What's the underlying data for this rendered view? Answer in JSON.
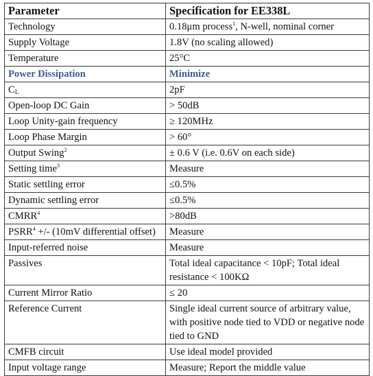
{
  "headers": {
    "col1": "Parameter",
    "col2": "Specification for EE338L"
  },
  "colors": {
    "highlight_text": "#3d5a91",
    "border": "#3a3a3a",
    "text": "#111111"
  },
  "rows": [
    {
      "param": "Technology",
      "spec_pre": "0.18",
      "spec_unit": "μm process",
      "spec_sup": "1",
      "spec_post": ", N-well, nominal corner"
    },
    {
      "param": "Supply Voltage",
      "spec": "1.8V (no scaling allowed)"
    },
    {
      "param": "Temperature",
      "spec": "25°C"
    },
    {
      "param": "Power Dissipation",
      "spec": "Minimize",
      "highlight": true
    },
    {
      "param_main": "C",
      "param_sub": "L",
      "spec": "2pF"
    },
    {
      "param": "Open-loop DC Gain",
      "spec": "> 50dB"
    },
    {
      "param": "Loop Unity-gain frequency",
      "spec": "≥ 120MHz"
    },
    {
      "param": "Loop Phase Margin",
      "spec": "> 60°"
    },
    {
      "param": "Output Swing",
      "param_sup": "2",
      "spec": "± 0.6 V (i.e. 0.6V on each side)"
    },
    {
      "param": "Setting time",
      "param_sup": "3",
      "spec": "Measure"
    },
    {
      "param": "Static settling error",
      "spec": "≤0.5%"
    },
    {
      "param": "Dynamic settling error",
      "spec": "≤0.5%"
    },
    {
      "param": "CMRR",
      "param_sup": "4",
      "spec": ">80dB"
    },
    {
      "param": "PSRR",
      "param_sup": "4",
      "param_post": " +/- (10mV differential offset)",
      "spec": "Measure"
    },
    {
      "param": "Input-referred noise",
      "spec": "Measure"
    },
    {
      "param": "Passives",
      "spec": "Total ideal capacitance < 10pF; Total ideal resistance < 100KΩ"
    },
    {
      "param": "Current Mirror Ratio",
      "spec": "≤ 20"
    },
    {
      "param": "Reference Current",
      "spec": "Single ideal current source of arbitrary value, with positive node tied to VDD or negative node tied to GND"
    },
    {
      "param": "CMFB circuit",
      "spec": "Use ideal model provided"
    },
    {
      "param": "Input voltage range",
      "spec": "Measure; Report the middle value"
    }
  ]
}
